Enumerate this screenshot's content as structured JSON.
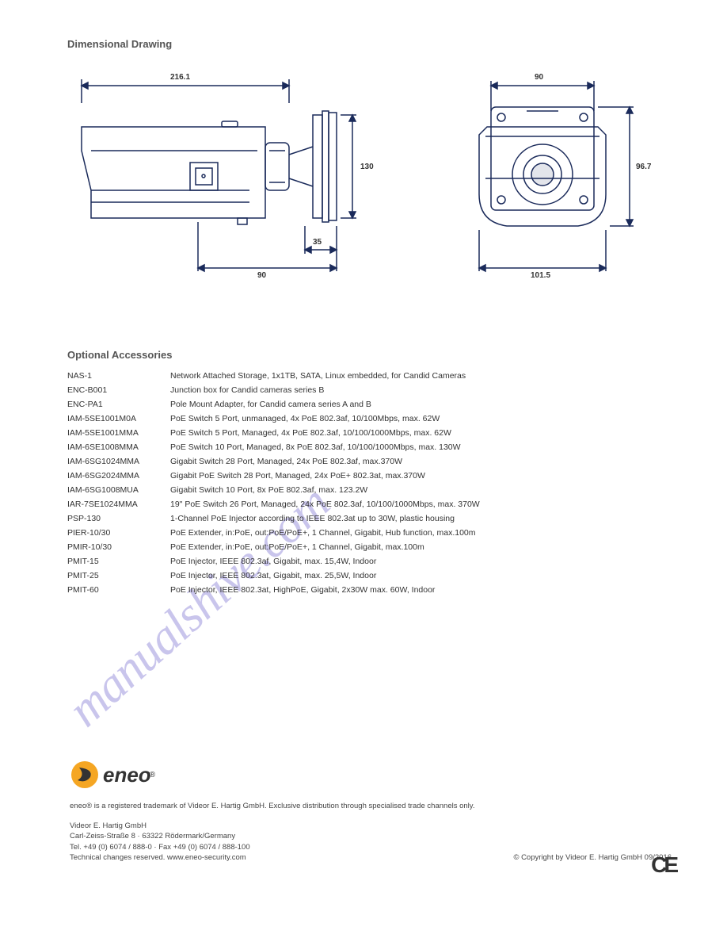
{
  "dimensions_drawing": {
    "title": "Dimensional Drawing",
    "side_view": {
      "overall_length": "216.1",
      "bracket_height": "130",
      "base_diameter": "90",
      "base_depth": "35"
    },
    "front_view": {
      "width": "90",
      "height": "96.7",
      "outer_width": "101.5"
    },
    "colors": {
      "stroke": "#1a2a5a",
      "fill": "#ffffff",
      "dim_line": "#1a2a5a"
    }
  },
  "accessories": {
    "title": "Optional Accessories",
    "items": [
      {
        "code": "NAS-1",
        "desc": "Network Attached Storage, 1x1TB, SATA, Linux embedded, for Candid Cameras"
      },
      {
        "code": "ENC-B001",
        "desc": "Junction box for Candid cameras series B"
      },
      {
        "code": "ENC-PA1",
        "desc": "Pole Mount Adapter, for Candid camera series A and B"
      },
      {
        "code": "IAM-5SE1001M0A",
        "desc": "PoE Switch 5 Port, unmanaged, 4x PoE 802.3af, 10/100Mbps, max. 62W"
      },
      {
        "code": "IAM-5SE1001MMA",
        "desc": "PoE Switch 5 Port, Managed, 4x PoE 802.3af, 10/100/1000Mbps, max. 62W"
      },
      {
        "code": "IAM-6SE1008MMA",
        "desc": "PoE Switch 10 Port, Managed, 8x PoE 802.3af, 10/100/1000Mbps, max. 130W"
      },
      {
        "code": "IAM-6SG1024MMA",
        "desc": "Gigabit Switch 28 Port, Managed, 24x PoE 802.3af, max.370W"
      },
      {
        "code": "IAM-6SG2024MMA",
        "desc": "Gigabit PoE Switch 28 Port, Managed, 24x PoE+ 802.3at, max.370W"
      },
      {
        "code": "IAM-6SG1008MUA",
        "desc": "Gigabit Switch 10 Port, 8x PoE 802.3af, max. 123.2W"
      },
      {
        "code": "IAR-7SE1024MMA",
        "desc": "19\" PoE Switch 26 Port, Managed, 24x PoE 802.3af, 10/100/1000Mbps, max. 370W"
      },
      {
        "code": "PSP-130",
        "desc": "1-Channel PoE Injector according to IEEE 802.3at up to 30W, plastic housing"
      },
      {
        "code": "PIER-10/30",
        "desc": "PoE Extender, in:PoE, out:PoE/PoE+, 1 Channel, Gigabit, Hub function, max.100m"
      },
      {
        "code": "PMIR-10/30",
        "desc": "PoE Extender, in:PoE, out:PoE/PoE+, 1 Channel, Gigabit, max.100m"
      },
      {
        "code": "PMIT-15",
        "desc": "PoE Injector, IEEE 802.3af, Gigabit, max. 15,4W, Indoor"
      },
      {
        "code": "PMIT-25",
        "desc": "PoE Injector, IEEE 802.3at, Gigabit, max. 25,5W, Indoor"
      },
      {
        "code": "PMIT-60",
        "desc": "PoE Injector, IEEE 802.3at, HighPoE, Gigabit, 2x30W max. 60W, Indoor"
      }
    ]
  },
  "footer": {
    "brand": "eneo",
    "line1": "eneo® is a registered trademark of Videor E. Hartig GmbH. Exclusive distribution through specialised trade channels only.",
    "line2_a": "Videor E. Hartig GmbH",
    "line2_b": "Carl-Zeiss-Straße 8 · 63322 Rödermark/Germany",
    "line2_c": "Tel. +49 (0) 6074 / 888-0 · Fax +49 (0) 6074 / 888-100",
    "line2_d": "Technical changes reserved. www.eneo-security.com",
    "copyright": "© Copyright by Videor E. Hartig GmbH 09/2016"
  },
  "watermark": "manualshive.com",
  "ce_mark": "CE"
}
